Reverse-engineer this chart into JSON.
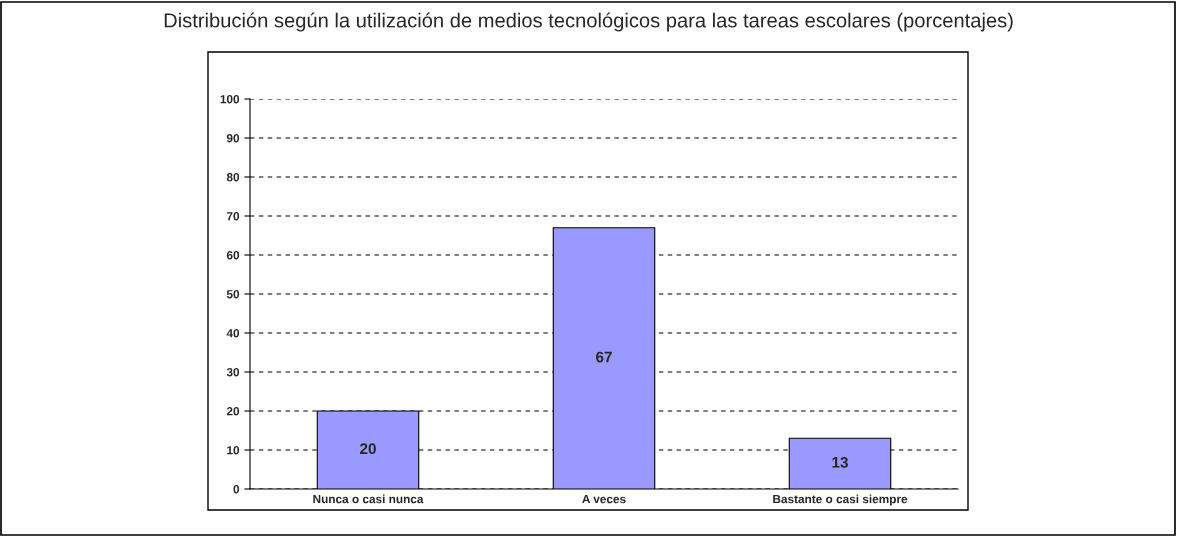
{
  "chart_data": {
    "type": "bar",
    "title": "Distribución según la utilización de medios tecnológicos para las tareas escolares (porcentajes)",
    "categories": [
      "Nunca o casi nunca",
      "A veces",
      "Bastante o casi siempre"
    ],
    "values": [
      20,
      67,
      13
    ],
    "color": "#9999ff",
    "data_labels": true,
    "ylim": [
      0,
      100
    ],
    "yticks": [
      0,
      10,
      20,
      30,
      40,
      50,
      60,
      70,
      80,
      90,
      100
    ],
    "grid": "y"
  }
}
